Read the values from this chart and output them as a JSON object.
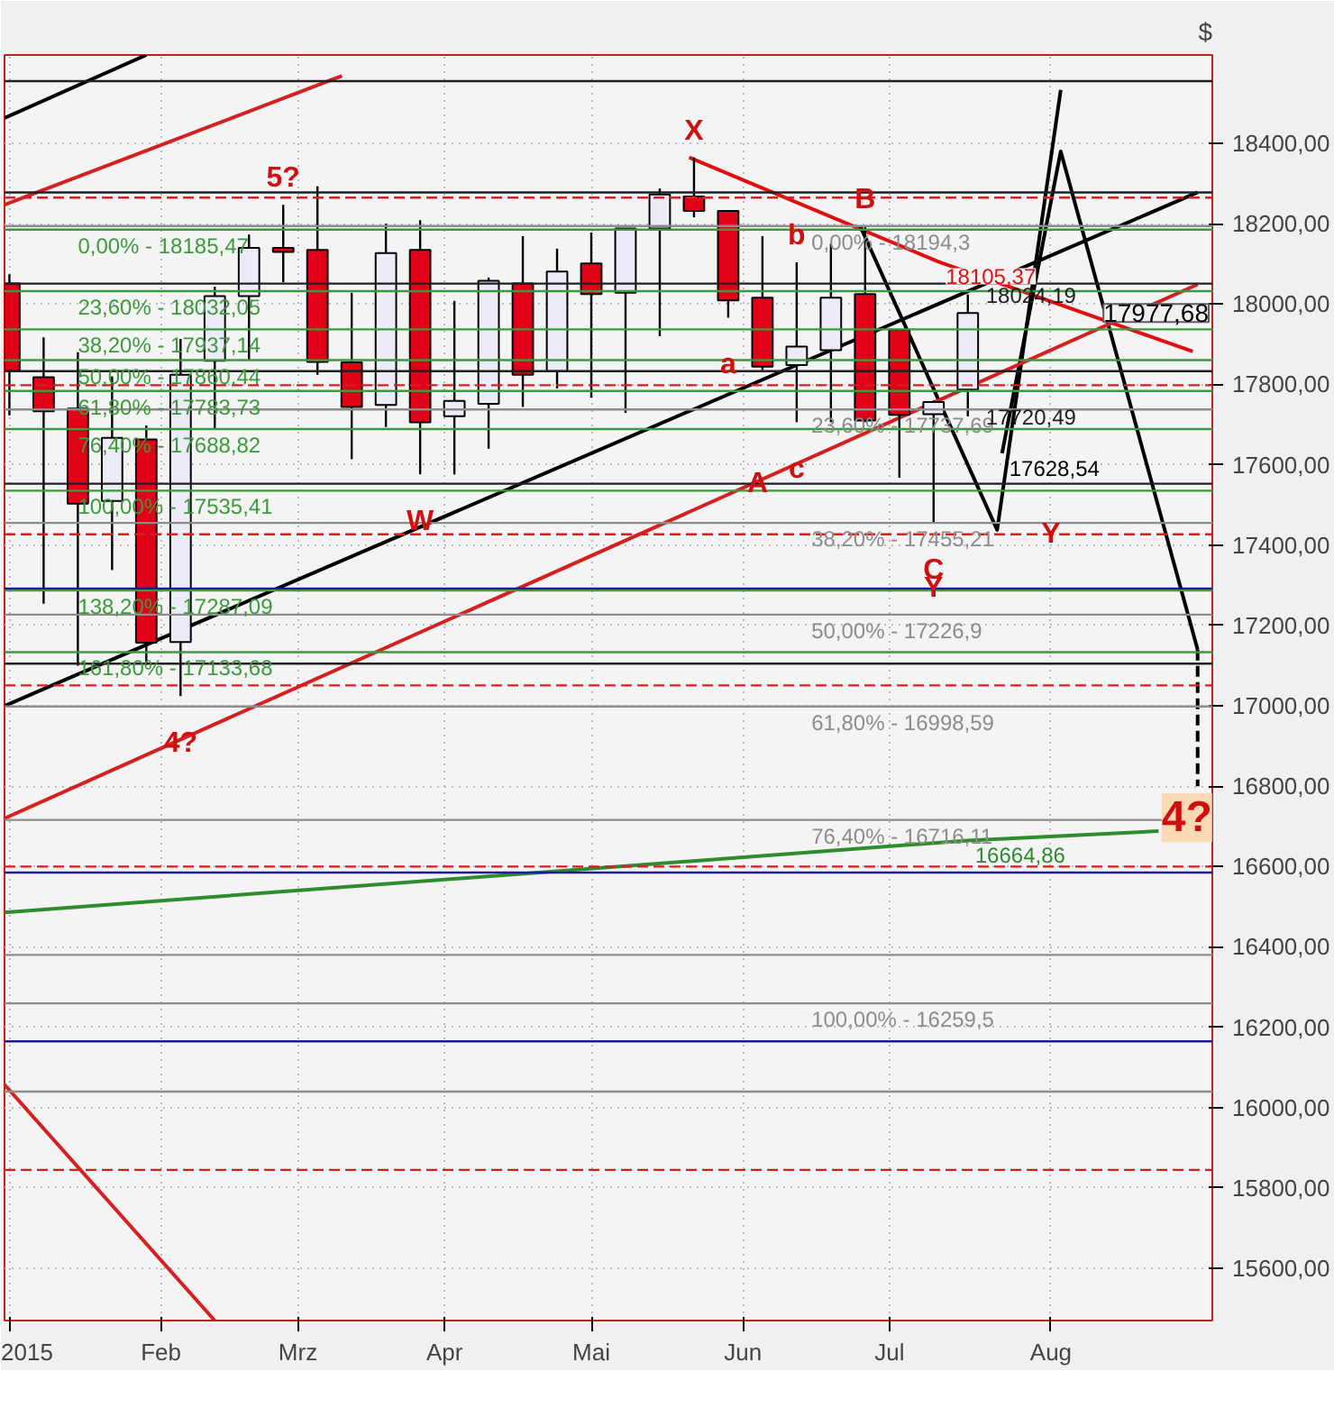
{
  "chart_data": {
    "type": "candlestick",
    "ylabel": "$",
    "x": [
      "2015-01-02",
      "2015-01-09",
      "2015-01-16",
      "2015-01-23",
      "2015-01-30",
      "2015-02-06",
      "2015-02-13",
      "2015-02-20",
      "2015-02-27",
      "2015-03-06",
      "2015-03-13",
      "2015-03-20",
      "2015-03-27",
      "2015-04-03",
      "2015-04-10",
      "2015-04-17",
      "2015-04-24",
      "2015-05-01",
      "2015-05-08",
      "2015-05-15",
      "2015-05-22",
      "2015-05-29",
      "2015-06-05",
      "2015-06-12",
      "2015-06-19",
      "2015-06-26",
      "2015-07-03",
      "2015-07-10",
      "2015-07-17"
    ],
    "ohlc": [
      [
        18051,
        18074,
        17723,
        17833
      ],
      [
        17818,
        17917,
        17254,
        17733
      ],
      [
        17740,
        17880,
        17100,
        17503
      ],
      [
        17510,
        17820,
        17338,
        17667
      ],
      [
        17663,
        17698,
        17102,
        17157
      ],
      [
        17159,
        17913,
        17024,
        17824
      ],
      [
        17859,
        18043,
        17690,
        18020
      ],
      [
        18020,
        18173,
        17861,
        18140
      ],
      [
        18140,
        18247,
        18054,
        18130
      ],
      [
        18135,
        18293,
        17824,
        17856
      ],
      [
        17855,
        18028,
        17614,
        17744
      ],
      [
        17749,
        18200,
        17694,
        18127
      ],
      [
        18135,
        18209,
        17576,
        17706
      ],
      [
        17721,
        18008,
        17576,
        17759
      ],
      [
        17752,
        18066,
        17640,
        18058
      ],
      [
        18051,
        18169,
        17744,
        17824
      ],
      [
        17833,
        18138,
        17790,
        18081
      ],
      [
        18101,
        18178,
        17767,
        18025
      ],
      [
        18028,
        18188,
        17729,
        18188
      ],
      [
        18188,
        18288,
        17920,
        18273
      ],
      [
        18268,
        18365,
        18216,
        18232
      ],
      [
        18232,
        18232,
        17966,
        18009
      ],
      [
        18016,
        18169,
        17836,
        17844
      ],
      [
        17848,
        18104,
        17706,
        17894
      ],
      [
        17885,
        18150,
        17706,
        18016
      ],
      [
        18025,
        18194,
        17706,
        17710
      ],
      [
        17936,
        17936,
        17568,
        17724
      ],
      [
        17726,
        17760,
        17456,
        17756
      ],
      [
        17787,
        18024.19,
        17720.49,
        17977.68
      ]
    ],
    "colors": [
      "#e00018",
      "#e00018",
      "#e00018",
      "#ececf8",
      "#e00018",
      "#ececf8",
      "#ececf8",
      "#ececf8",
      "#e00018",
      "#e00018",
      "#e00018",
      "#ececf8",
      "#e00018",
      "#ececf8",
      "#ececf8",
      "#e00018",
      "#ececf8",
      "#e00018",
      "#ececf8",
      "#ececf8",
      "#e00018",
      "#e00018",
      "#e00018",
      "#ececf8",
      "#ececf8",
      "#e00018",
      "#e00018",
      "#ececf8",
      "#ececf8"
    ],
    "series": [
      {
        "type": "line",
        "color": "#e01010",
        "x": [
          "2015-05-21",
          "2015-07-11",
          "2015-09-01"
        ],
        "values": [
          18365,
          18105.37,
          17882
        ]
      },
      {
        "type": "line",
        "color": "#2e8b2e",
        "x": [
          "2015-01-01",
          "2015-07-17",
          "2015-08-25"
        ],
        "values": [
          16486,
          16664.86,
          16688
        ]
      },
      {
        "type": "line",
        "color": "#000000",
        "x": [
          "2015-06-25",
          "2015-07-23",
          "2015-08-05"
        ],
        "values": [
          18194,
          17438,
          18533
        ]
      },
      {
        "type": "line",
        "color": "#000000",
        "x": [
          "2015-07-24",
          "2015-08-05",
          "2015-09-02"
        ],
        "values": [
          17628.54,
          18380,
          17140
        ]
      },
      {
        "type": "line",
        "color": "#000000",
        "line_style": "dashed",
        "x": [
          "2015-09-02",
          "2015-09-02"
        ],
        "values": [
          17140,
          16800
        ]
      },
      {
        "type": "line",
        "color": "#000000",
        "x": [
          "2015-01-01",
          "2015-09-02"
        ],
        "values": [
          17000,
          18278
        ]
      },
      {
        "type": "line",
        "color": "#d42020",
        "x": [
          "2015-01-01",
          "2015-09-02"
        ],
        "values": [
          16720,
          18049
        ]
      },
      {
        "type": "line",
        "color": "#000000",
        "x": [
          "2015-01-01",
          "2015-01-30"
        ],
        "values": [
          18463,
          18620
        ]
      },
      {
        "type": "line",
        "color": "#d42020",
        "x": [
          "2015-01-01",
          "2015-03-11"
        ],
        "values": [
          18247,
          18568
        ]
      },
      {
        "type": "line",
        "color": "#d42020",
        "x": [
          "2015-01-01",
          "2015-02-13"
        ],
        "values": [
          16057,
          15470
        ]
      }
    ],
    "ref_lines": [
      {
        "axis": "y",
        "value": 18185.47,
        "color": "#3c9a3c"
      },
      {
        "axis": "y",
        "value": 18032.05,
        "color": "#3c9a3c"
      },
      {
        "axis": "y",
        "value": 17937.14,
        "color": "#3c9a3c"
      },
      {
        "axis": "y",
        "value": 17860.44,
        "color": "#3c9a3c"
      },
      {
        "axis": "y",
        "value": 17783.73,
        "color": "#3c9a3c"
      },
      {
        "axis": "y",
        "value": 17688.82,
        "color": "#3c9a3c"
      },
      {
        "axis": "y",
        "value": 17535.41,
        "color": "#3c9a3c"
      },
      {
        "axis": "y",
        "value": 17287.09,
        "color": "#3c9a3c"
      },
      {
        "axis": "y",
        "value": 17133.68,
        "color": "#3c9a3c"
      },
      {
        "axis": "y",
        "value": 18194.3,
        "color": "#8c8c8c"
      },
      {
        "axis": "y",
        "value": 17737.69,
        "color": "#8c8c8c"
      },
      {
        "axis": "y",
        "value": 17455.21,
        "color": "#8c8c8c"
      },
      {
        "axis": "y",
        "value": 17226.9,
        "color": "#8c8c8c"
      },
      {
        "axis": "y",
        "value": 16998.59,
        "color": "#8c8c8c"
      },
      {
        "axis": "y",
        "value": 16716.11,
        "color": "#8c8c8c"
      },
      {
        "axis": "y",
        "value": 16259.5,
        "color": "#8c8c8c"
      },
      {
        "axis": "y",
        "value": 16380,
        "color": "#8c8c8c"
      },
      {
        "axis": "y",
        "value": 16040,
        "color": "#8c8c8c"
      },
      {
        "axis": "y",
        "value": 18265,
        "color": "#d42020",
        "line_style": "dashed"
      },
      {
        "axis": "y",
        "value": 17798,
        "color": "#d42020",
        "line_style": "dashed"
      },
      {
        "axis": "y",
        "value": 17427,
        "color": "#d42020",
        "line_style": "dashed"
      },
      {
        "axis": "y",
        "value": 17051,
        "color": "#d42020",
        "line_style": "dashed"
      },
      {
        "axis": "y",
        "value": 16600,
        "color": "#d42020",
        "line_style": "dashed"
      },
      {
        "axis": "y",
        "value": 15845,
        "color": "#d42020",
        "line_style": "dashed"
      },
      {
        "axis": "y",
        "value": 17292,
        "color": "#1a1aa0"
      },
      {
        "axis": "y",
        "value": 16585,
        "color": "#1a1aa0"
      },
      {
        "axis": "y",
        "value": 16165,
        "color": "#1a1aa0"
      },
      {
        "axis": "y",
        "value": 18555,
        "color": "#202020"
      },
      {
        "axis": "y",
        "value": 18278,
        "color": "#202020"
      },
      {
        "axis": "y",
        "value": 18051,
        "color": "#202020"
      },
      {
        "axis": "y",
        "value": 17833,
        "color": "#202020"
      },
      {
        "axis": "y",
        "value": 17553,
        "color": "#202020"
      },
      {
        "axis": "y",
        "value": 17105,
        "color": "#202020"
      }
    ],
    "annotations": [
      {
        "text": "0,00% - 18185,47",
        "x": "2015-01-16",
        "y": 18185.47
      },
      {
        "text": "23,60% - 18032,05",
        "x": "2015-01-16",
        "y": 18032.05
      },
      {
        "text": "38,20% - 17937,14",
        "x": "2015-01-16",
        "y": 17937.14
      },
      {
        "text": "50,00% - 17860,44",
        "x": "2015-01-16",
        "y": 17860.44
      },
      {
        "text": "61,80% - 17783,73",
        "x": "2015-01-16",
        "y": 17783.73
      },
      {
        "text": "76,40% - 17688,82",
        "x": "2015-01-16",
        "y": 17688.82
      },
      {
        "text": "100,00% - 17535,41",
        "x": "2015-01-16",
        "y": 17535.41
      },
      {
        "text": "138,20% - 17287,09",
        "x": "2015-01-16",
        "y": 17287.09
      },
      {
        "text": "161,80% - 17133,68",
        "x": "2015-01-16",
        "y": 17133.68
      },
      {
        "text": "0,00% - 18194,3",
        "x": "2015-06-15",
        "y": 18194.3
      },
      {
        "text": "23,60% - 17737,69",
        "x": "2015-06-15",
        "y": 17737.69
      },
      {
        "text": "38,20% - 17455,21",
        "x": "2015-06-15",
        "y": 17455.21
      },
      {
        "text": "50,00% - 17226,9",
        "x": "2015-06-15",
        "y": 17226.9
      },
      {
        "text": "61,80% - 16998,59",
        "x": "2015-06-15",
        "y": 16998.59
      },
      {
        "text": "76,40% - 16716,11",
        "x": "2015-06-15",
        "y": 16716.11
      },
      {
        "text": "100,00% - 16259,5",
        "x": "2015-06-15",
        "y": 16259.5
      },
      {
        "text": "18105,37",
        "x": "2015-07-11",
        "y": 18105.37
      },
      {
        "text": "18024,19",
        "x": "2015-07-17",
        "y": 18024.19
      },
      {
        "text": "17720,49",
        "x": "2015-07-17",
        "y": 17720.49
      },
      {
        "text": "17628,54",
        "x": "2015-07-24",
        "y": 17628.54
      },
      {
        "text": "16664,86",
        "x": "2015-07-17",
        "y": 16664.86
      },
      {
        "text": "X",
        "x": "2015-05-22",
        "y": 18365
      },
      {
        "text": "B",
        "x": "2015-06-26",
        "y": 18194
      },
      {
        "text": "5?",
        "x": "2015-02-27",
        "y": 18247
      },
      {
        "text": "W",
        "x": "2015-03-27",
        "y": 17576
      },
      {
        "text": "a",
        "x": "2015-05-29",
        "y": 17966
      },
      {
        "text": "b",
        "x": "2015-06-12",
        "y": 18104
      },
      {
        "text": "c",
        "x": "2015-06-12",
        "y": 17706
      },
      {
        "text": "A",
        "x": "2015-06-04",
        "y": 17553
      },
      {
        "text": "C",
        "x": "2015-07-10",
        "y": 17456
      },
      {
        "text": "Y",
        "x": "2015-08-03",
        "y": 17427
      },
      {
        "text": "Y",
        "x": "2015-07-10",
        "y": 17292
      },
      {
        "text": "4?",
        "x": "2015-02-06",
        "y": 17024
      },
      {
        "text": "4?",
        "x": "2015-09-02",
        "y": 16800
      },
      "17977,68"
    ],
    "xlim": [
      "2015-01-01",
      "2015-09-05"
    ],
    "xticks": [
      {
        "value": "2015-01-02",
        "label": "2015"
      },
      {
        "value": "2015-02-02",
        "label": "Feb"
      },
      {
        "value": "2015-03-02",
        "label": "Mrz"
      },
      {
        "value": "2015-04-01",
        "label": "Apr"
      },
      {
        "value": "2015-05-01",
        "label": "Mai"
      },
      {
        "value": "2015-06-01",
        "label": "Jun"
      },
      {
        "value": "2015-07-01",
        "label": "Jul"
      },
      {
        "value": "2015-08-03",
        "label": "Aug"
      }
    ],
    "ylim": [
      15470,
      18620
    ],
    "yticks": [
      {
        "value": 15600,
        "label": "15600,00"
      },
      {
        "value": 15800,
        "label": "15800,00"
      },
      {
        "value": 16000,
        "label": "16000,00"
      },
      {
        "value": 16200,
        "label": "16200,00"
      },
      {
        "value": 16400,
        "label": "16400,00"
      },
      {
        "value": 16600,
        "label": "16600,00"
      },
      {
        "value": 16800,
        "label": "16800,00"
      },
      {
        "value": 17000,
        "label": "17000,00"
      },
      {
        "value": 17200,
        "label": "17200,00"
      },
      {
        "value": 17400,
        "label": "17400,00"
      },
      {
        "value": 17600,
        "label": "17600,00"
      },
      {
        "value": 17800,
        "label": "17800,00"
      },
      {
        "value": 18000,
        "label": "18000,00"
      },
      {
        "value": 18200,
        "label": "18200,00"
      },
      {
        "value": 18400,
        "label": "18400,00"
      }
    ],
    "grid": true
  }
}
